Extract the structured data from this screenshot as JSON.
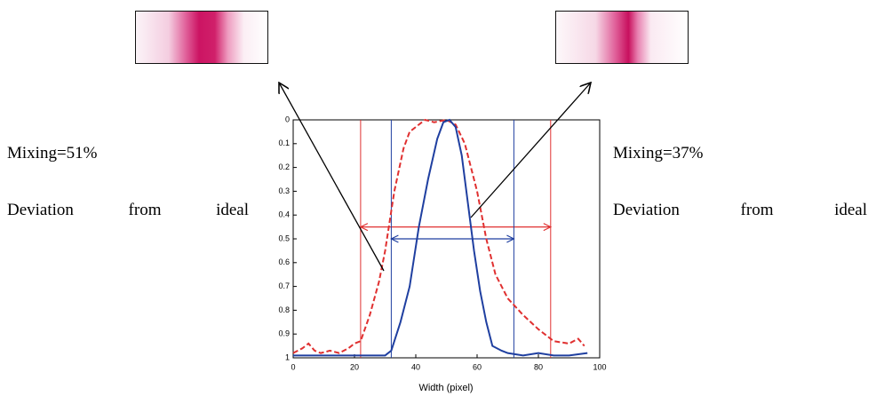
{
  "chart_data": {
    "type": "line",
    "xlabel": "Width (pixel)",
    "xlim": [
      0,
      100
    ],
    "xticks": [
      0,
      20,
      40,
      60,
      80,
      100
    ],
    "ylim": [
      1,
      0
    ],
    "yticks": [
      0,
      0.1,
      0.2,
      0.3,
      0.4,
      0.5,
      0.6,
      0.7,
      0.8,
      0.9,
      1
    ],
    "series": [
      {
        "color": "#e03030",
        "dash": true,
        "x": [
          0,
          3,
          5,
          7,
          9,
          12,
          15,
          18,
          20,
          22,
          25,
          28,
          30,
          33,
          36,
          38,
          40,
          43,
          46,
          50,
          53,
          56,
          58,
          60,
          63,
          66,
          70,
          75,
          80,
          85,
          90,
          93,
          95
        ],
        "values": [
          0.98,
          0.96,
          0.94,
          0.97,
          0.98,
          0.97,
          0.98,
          0.96,
          0.94,
          0.93,
          0.82,
          0.68,
          0.55,
          0.3,
          0.12,
          0.05,
          0.03,
          0.0,
          0.01,
          0.0,
          0.02,
          0.1,
          0.2,
          0.3,
          0.5,
          0.65,
          0.75,
          0.82,
          0.88,
          0.93,
          0.94,
          0.92,
          0.95
        ]
      },
      {
        "color": "#1f3fa0",
        "dash": false,
        "x": [
          0,
          10,
          20,
          25,
          30,
          32,
          35,
          38,
          41,
          44,
          47,
          49,
          51,
          53,
          55,
          57,
          59,
          61,
          63,
          65,
          68,
          70,
          75,
          80,
          85,
          90,
          96
        ],
        "values": [
          0.99,
          0.99,
          0.99,
          0.99,
          0.99,
          0.97,
          0.85,
          0.7,
          0.45,
          0.25,
          0.08,
          0.01,
          0.0,
          0.03,
          0.15,
          0.35,
          0.55,
          0.72,
          0.85,
          0.95,
          0.97,
          0.98,
          0.99,
          0.98,
          0.99,
          0.99,
          0.98
        ]
      }
    ],
    "ref_lines": [
      {
        "color": "#e03030",
        "x1": 22,
        "x2": 84,
        "y": 0.45
      },
      {
        "color": "#1f3fa0",
        "x1": 32,
        "x2": 72,
        "y": 0.5
      }
    ],
    "annotations": [
      "Mixing=51%",
      "Deviation from ideal",
      "Mixing=37%",
      "Deviation from ideal"
    ]
  }
}
